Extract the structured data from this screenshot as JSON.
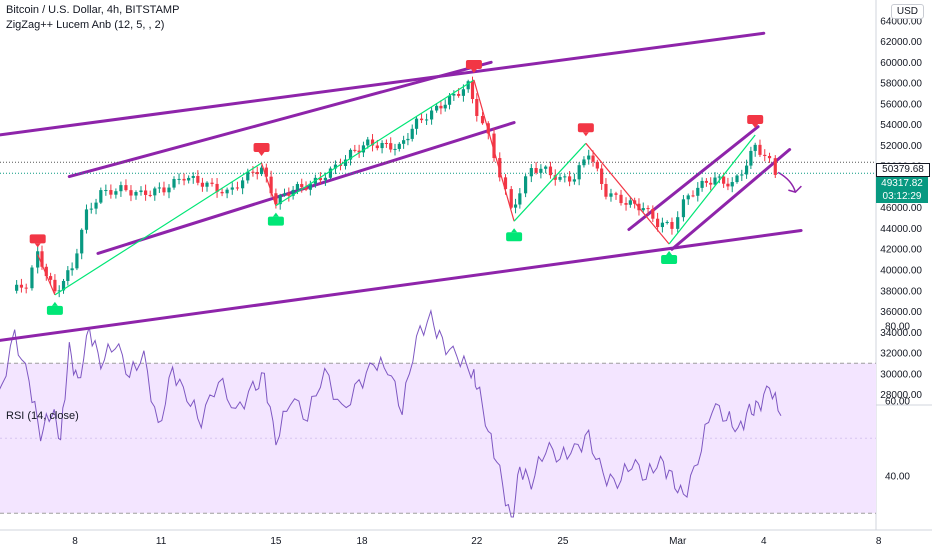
{
  "header": {
    "symbol_line": "Bitcoin / U.S. Dollar, 4h, BITSTAMP",
    "indicator_line": "ZigZag++ Lucem Anb (12, 5, , 2)",
    "rsi_label": "RSI (14, close)",
    "currency_button": "USD"
  },
  "price_tags": {
    "last": "50379.68",
    "current": "49317.82",
    "countdown": "03:12:29"
  },
  "colors": {
    "up": "#089981",
    "down": "#f23645",
    "channel": "#8e24aa",
    "zigzag_up": "#00e676",
    "zigzag_down": "#f23645",
    "rsi_line": "#7e57c2",
    "rsi_band": "#f3e5ff"
  },
  "chart_data": [
    {
      "type": "candlestick",
      "title": "Bitcoin / U.S. Dollar, 4h, BITSTAMP",
      "ylim": [
        27000,
        66000
      ],
      "y_ticks": [
        "28000.00",
        "30000.00",
        "32000.00",
        "34000.00",
        "36000.00",
        "38000.00",
        "40000.00",
        "42000.00",
        "44000.00",
        "46000.00",
        "48000.00",
        "50000.00",
        "52000.00",
        "54000.00",
        "56000.00",
        "58000.00",
        "60000.00",
        "62000.00",
        "64000.00"
      ],
      "x_ticks": [
        {
          "label": "8",
          "day": 8
        },
        {
          "label": "11",
          "day": 11
        },
        {
          "label": "15",
          "day": 15
        },
        {
          "label": "18",
          "day": 18
        },
        {
          "label": "22",
          "day": 22
        },
        {
          "label": "25",
          "day": 25
        },
        {
          "label": "Mar",
          "day": 29
        },
        {
          "label": "4",
          "day": 32
        },
        {
          "label": "8",
          "day": 36
        }
      ],
      "price_anchors": [
        [
          5.8,
          38000
        ],
        [
          6.3,
          38600
        ],
        [
          6.7,
          41500
        ],
        [
          7.3,
          37800
        ],
        [
          7.9,
          40200
        ],
        [
          8.4,
          45500
        ],
        [
          8.9,
          47400
        ],
        [
          9.6,
          47800
        ],
        [
          10.3,
          47300
        ],
        [
          11.1,
          47800
        ],
        [
          11.8,
          49000
        ],
        [
          12.6,
          48200
        ],
        [
          13.3,
          47400
        ],
        [
          14.2,
          49500
        ],
        [
          14.5,
          49700
        ],
        [
          15.0,
          46600
        ],
        [
          15.6,
          47800
        ],
        [
          16.2,
          48200
        ],
        [
          16.9,
          49500
        ],
        [
          17.6,
          51200
        ],
        [
          18.2,
          52200
        ],
        [
          18.7,
          52000
        ],
        [
          19.3,
          51800
        ],
        [
          19.9,
          54200
        ],
        [
          20.6,
          55500
        ],
        [
          21.2,
          56800
        ],
        [
          21.7,
          57800
        ],
        [
          22.0,
          55200
        ],
        [
          22.4,
          52800
        ],
        [
          22.8,
          49200
        ],
        [
          23.2,
          45800
        ],
        [
          23.5,
          47500
        ],
        [
          23.9,
          49800
        ],
        [
          24.4,
          49600
        ],
        [
          24.9,
          48700
        ],
        [
          25.4,
          48900
        ],
        [
          25.9,
          51400
        ],
        [
          26.5,
          47400
        ],
        [
          27.2,
          46500
        ],
        [
          27.8,
          46000
        ],
        [
          28.3,
          44500
        ],
        [
          28.8,
          44200
        ],
        [
          29.2,
          46500
        ],
        [
          29.7,
          48000
        ],
        [
          30.3,
          48800
        ],
        [
          30.9,
          48200
        ],
        [
          31.4,
          50200
        ],
        [
          31.7,
          52000
        ],
        [
          32.2,
          50400
        ],
        [
          32.4,
          49300
        ]
      ],
      "zigzag_pivots": [
        {
          "day": 6.7,
          "price": 41500,
          "kind": "high"
        },
        {
          "day": 7.3,
          "price": 37600,
          "kind": "low"
        },
        {
          "day": 14.5,
          "price": 50300,
          "kind": "high"
        },
        {
          "day": 15.0,
          "price": 46200,
          "kind": "low"
        },
        {
          "day": 21.9,
          "price": 58300,
          "kind": "high"
        },
        {
          "day": 23.3,
          "price": 44700,
          "kind": "low"
        },
        {
          "day": 25.8,
          "price": 52200,
          "kind": "high"
        },
        {
          "day": 28.7,
          "price": 42500,
          "kind": "low"
        },
        {
          "day": 31.7,
          "price": 53000,
          "kind": "high"
        }
      ],
      "trend_lines": [
        {
          "from": [
            4.8,
            52800
          ],
          "to": [
            32.0,
            62800
          ]
        },
        {
          "from": [
            7.8,
            49000
          ],
          "to": [
            22.5,
            60000
          ]
        },
        {
          "from": [
            8.8,
            41600
          ],
          "to": [
            23.3,
            54200
          ]
        },
        {
          "from": [
            4.8,
            33000
          ],
          "to": [
            33.3,
            43800
          ]
        },
        {
          "from": [
            27.3,
            43900
          ],
          "to": [
            31.8,
            53800
          ]
        },
        {
          "from": [
            28.8,
            42000
          ],
          "to": [
            32.9,
            51600
          ]
        }
      ],
      "arrow": {
        "from": [
          32.5,
          49400
        ],
        "to": [
          33.1,
          47500
        ]
      },
      "last_price_line": 50379.68,
      "current_price_line": 49317.82
    },
    {
      "type": "line",
      "title": "RSI (14, close)",
      "ylim": [
        25,
        85
      ],
      "y_ticks": [
        "40.00",
        "60.00",
        "80.00"
      ],
      "band": [
        30,
        70
      ],
      "x": [
        4.8,
        5.3,
        5.9,
        6.4,
        6.8,
        7.2,
        7.5,
        7.8,
        8.1,
        8.5,
        8.9,
        9.4,
        9.9,
        10.4,
        10.9,
        11.4,
        11.9,
        12.4,
        13.0,
        13.6,
        14.2,
        14.6,
        15.0,
        15.5,
        16.1,
        16.7,
        17.3,
        17.9,
        18.4,
        18.9,
        19.4,
        19.9,
        20.4,
        20.8,
        21.3,
        21.8,
        22.0,
        22.4,
        22.8,
        23.2,
        23.5,
        23.9,
        24.4,
        24.9,
        25.4,
        25.9,
        26.4,
        26.9,
        27.4,
        27.9,
        28.4,
        28.8,
        29.2,
        29.7,
        30.2,
        30.7,
        31.1,
        31.5,
        31.8,
        32.2,
        32.6
      ],
      "values": [
        62,
        60,
        77,
        65,
        51,
        58,
        50,
        74,
        64,
        79,
        70,
        76,
        67,
        72,
        52,
        68,
        61,
        55,
        66,
        57,
        63,
        66,
        49,
        61,
        56,
        68,
        57,
        64,
        70,
        69,
        58,
        77,
        82,
        75,
        72,
        68,
        65,
        52,
        41,
        27,
        42,
        38,
        48,
        45,
        47,
        50,
        40,
        38,
        44,
        40,
        44,
        39,
        34,
        44,
        59,
        56,
        52,
        57,
        58,
        64,
        56
      ]
    }
  ]
}
